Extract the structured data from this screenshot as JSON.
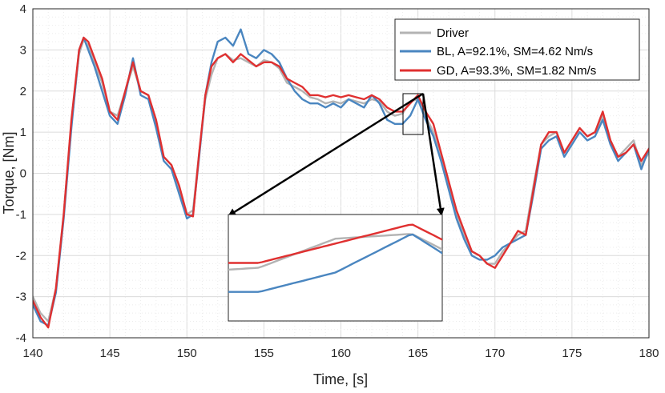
{
  "chart_data": {
    "type": "line",
    "xlabel": "Time, [s]",
    "ylabel": "Torque, [Nm]",
    "xlim": [
      140,
      180
    ],
    "ylim": [
      -4,
      4
    ],
    "xticks": [
      "140",
      "145",
      "150",
      "155",
      "160",
      "165",
      "170",
      "175",
      "180"
    ],
    "yticks": [
      "-4",
      "-3",
      "-2",
      "-1",
      "0",
      "1",
      "2",
      "3",
      "4"
    ],
    "grid": true,
    "legend_position": "top-right",
    "series": [
      {
        "name": "Driver",
        "color": "#b3b3b3",
        "x": [
          140.0,
          140.5,
          141.0,
          141.5,
          142.0,
          142.5,
          143.0,
          143.3,
          143.6,
          144.0,
          144.5,
          145.0,
          145.5,
          146.0,
          146.5,
          147.0,
          147.5,
          148.0,
          148.5,
          149.0,
          149.5,
          150.0,
          150.4,
          150.8,
          151.2,
          151.6,
          152.0,
          152.5,
          153.0,
          153.5,
          154.0,
          154.5,
          155.0,
          155.5,
          156.0,
          156.5,
          157.0,
          157.5,
          158.0,
          158.5,
          159.0,
          159.5,
          160.0,
          160.5,
          161.0,
          161.5,
          162.0,
          162.5,
          163.0,
          163.5,
          164.0,
          164.5,
          165.0,
          165.5,
          166.0,
          166.5,
          167.0,
          167.5,
          168.0,
          168.5,
          169.0,
          169.5,
          170.0,
          170.5,
          171.0,
          171.5,
          172.0,
          172.5,
          173.0,
          173.5,
          174.0,
          174.5,
          175.0,
          175.5,
          176.0,
          176.5,
          177.0,
          177.5,
          178.0,
          178.5,
          179.0,
          179.5,
          180.0
        ],
        "values": [
          -3.0,
          -3.4,
          -3.6,
          -2.8,
          -1.0,
          1.2,
          2.9,
          3.25,
          3.1,
          2.7,
          2.2,
          1.5,
          1.4,
          2.0,
          2.6,
          2.0,
          1.9,
          1.2,
          0.4,
          0.2,
          -0.4,
          -1.0,
          -0.9,
          0.5,
          1.8,
          2.4,
          2.8,
          2.9,
          2.75,
          2.8,
          2.7,
          2.6,
          2.75,
          2.7,
          2.55,
          2.2,
          2.1,
          2.0,
          1.85,
          1.8,
          1.7,
          1.75,
          1.7,
          1.8,
          1.75,
          1.7,
          1.8,
          1.75,
          1.5,
          1.4,
          1.45,
          1.75,
          1.8,
          1.4,
          1.0,
          0.4,
          -0.3,
          -1.0,
          -1.5,
          -1.9,
          -2.0,
          -2.2,
          -2.2,
          -1.9,
          -1.7,
          -1.5,
          -1.4,
          -0.3,
          0.7,
          0.9,
          1.0,
          0.5,
          0.8,
          1.1,
          0.9,
          1.0,
          1.4,
          0.8,
          0.4,
          0.6,
          0.8,
          0.2,
          0.5
        ]
      },
      {
        "name": "BL, A=92.1%, SM=4.62 Nm/s",
        "color": "#4a86c0",
        "x": [
          140.0,
          140.5,
          141.0,
          141.5,
          142.0,
          142.5,
          143.0,
          143.3,
          143.6,
          144.0,
          144.5,
          145.0,
          145.5,
          146.0,
          146.5,
          147.0,
          147.5,
          148.0,
          148.5,
          149.0,
          149.5,
          150.0,
          150.4,
          150.8,
          151.2,
          151.6,
          152.0,
          152.5,
          153.0,
          153.5,
          154.0,
          154.5,
          155.0,
          155.5,
          156.0,
          156.5,
          157.0,
          157.5,
          158.0,
          158.5,
          159.0,
          159.5,
          160.0,
          160.5,
          161.0,
          161.5,
          162.0,
          162.5,
          163.0,
          163.5,
          164.0,
          164.5,
          165.0,
          165.5,
          166.0,
          166.5,
          167.0,
          167.5,
          168.0,
          168.5,
          169.0,
          169.5,
          170.0,
          170.5,
          171.0,
          171.5,
          172.0,
          172.5,
          173.0,
          173.5,
          174.0,
          174.5,
          175.0,
          175.5,
          176.0,
          176.5,
          177.0,
          177.5,
          178.0,
          178.5,
          179.0,
          179.5,
          180.0
        ],
        "values": [
          -3.2,
          -3.6,
          -3.7,
          -2.9,
          -1.1,
          1.1,
          3.0,
          3.3,
          3.0,
          2.6,
          2.0,
          1.4,
          1.2,
          1.9,
          2.8,
          1.9,
          1.8,
          1.1,
          0.3,
          0.1,
          -0.5,
          -1.1,
          -1.0,
          0.4,
          1.9,
          2.7,
          3.2,
          3.3,
          3.1,
          3.5,
          2.9,
          2.8,
          3.0,
          2.9,
          2.7,
          2.3,
          2.0,
          1.8,
          1.7,
          1.7,
          1.6,
          1.7,
          1.6,
          1.8,
          1.7,
          1.6,
          1.9,
          1.7,
          1.3,
          1.2,
          1.2,
          1.4,
          1.8,
          1.3,
          0.9,
          0.3,
          -0.4,
          -1.1,
          -1.6,
          -2.0,
          -2.1,
          -2.1,
          -2.0,
          -1.8,
          -1.7,
          -1.6,
          -1.5,
          -0.5,
          0.6,
          0.8,
          0.9,
          0.4,
          0.7,
          1.0,
          0.8,
          0.9,
          1.3,
          0.7,
          0.3,
          0.5,
          0.7,
          0.1,
          0.6
        ]
      },
      {
        "name": "GD, A=93.3%, SM=1.82 Nm/s",
        "color": "#e03030",
        "x": [
          140.0,
          140.5,
          141.0,
          141.5,
          142.0,
          142.5,
          143.0,
          143.3,
          143.6,
          144.0,
          144.5,
          145.0,
          145.5,
          146.0,
          146.5,
          147.0,
          147.5,
          148.0,
          148.5,
          149.0,
          149.5,
          150.0,
          150.4,
          150.8,
          151.2,
          151.6,
          152.0,
          152.5,
          153.0,
          153.5,
          154.0,
          154.5,
          155.0,
          155.5,
          156.0,
          156.5,
          157.0,
          157.5,
          158.0,
          158.5,
          159.0,
          159.5,
          160.0,
          160.5,
          161.0,
          161.5,
          162.0,
          162.5,
          163.0,
          163.5,
          164.0,
          164.5,
          165.0,
          165.5,
          166.0,
          166.5,
          167.0,
          167.5,
          168.0,
          168.5,
          169.0,
          169.5,
          170.0,
          170.5,
          171.0,
          171.5,
          172.0,
          172.5,
          173.0,
          173.5,
          174.0,
          174.5,
          175.0,
          175.5,
          176.0,
          176.5,
          177.0,
          177.5,
          178.0,
          178.5,
          179.0,
          179.5,
          180.0
        ],
        "values": [
          -3.1,
          -3.5,
          -3.75,
          -2.8,
          -1.0,
          1.3,
          3.0,
          3.3,
          3.2,
          2.8,
          2.3,
          1.5,
          1.3,
          2.0,
          2.7,
          2.0,
          1.9,
          1.3,
          0.4,
          0.2,
          -0.3,
          -1.0,
          -1.05,
          0.5,
          1.9,
          2.6,
          2.8,
          2.9,
          2.7,
          2.9,
          2.75,
          2.6,
          2.7,
          2.7,
          2.6,
          2.3,
          2.2,
          2.1,
          1.9,
          1.9,
          1.85,
          1.9,
          1.85,
          1.9,
          1.85,
          1.8,
          1.9,
          1.8,
          1.6,
          1.5,
          1.5,
          1.7,
          1.9,
          1.5,
          1.2,
          0.5,
          -0.2,
          -0.9,
          -1.4,
          -1.9,
          -2.0,
          -2.2,
          -2.3,
          -2.0,
          -1.7,
          -1.4,
          -1.5,
          -0.4,
          0.7,
          1.0,
          1.0,
          0.5,
          0.8,
          1.1,
          0.9,
          1.0,
          1.5,
          0.8,
          0.4,
          0.5,
          0.7,
          0.3,
          0.6
        ]
      }
    ],
    "inset": {
      "source_x_range": [
        163.8,
        165.2
      ],
      "source_y_range": [
        0.9,
        2.0
      ]
    }
  }
}
